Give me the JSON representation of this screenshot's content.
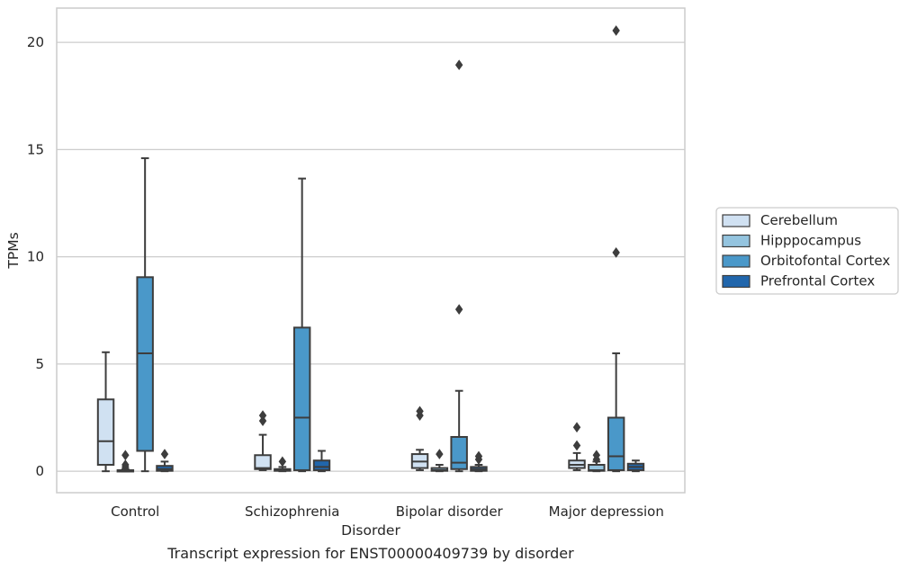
{
  "caption": "Transcript expression for ENST00000409739 by disorder",
  "chart_data": {
    "type": "box",
    "xlabel": "Disorder",
    "ylabel": "TPMs",
    "ylim": [
      -1,
      21.6
    ],
    "yticks": [
      0,
      5,
      10,
      15,
      20
    ],
    "grid": "horizontal",
    "legend_position": "right",
    "categories": [
      "Control",
      "Schizophrenia",
      "Bipolar disorder",
      "Major depression"
    ],
    "series": [
      {
        "name": "Cerebellum",
        "color": "#d0e1f2",
        "boxes": [
          {
            "category": "Control",
            "whisker_low": 0,
            "q1": 0.3,
            "median": 1.4,
            "q3": 3.35,
            "whisker_high": 5.55,
            "outliers": []
          },
          {
            "category": "Schizophrenia",
            "whisker_low": 0.05,
            "q1": 0.1,
            "median": 0.15,
            "q3": 0.75,
            "whisker_high": 1.7,
            "outliers": [
              2.35,
              2.6
            ]
          },
          {
            "category": "Bipolar disorder",
            "whisker_low": 0.05,
            "q1": 0.15,
            "median": 0.45,
            "q3": 0.8,
            "whisker_high": 1.0,
            "outliers": [
              2.6,
              2.8
            ]
          },
          {
            "category": "Major depression",
            "whisker_low": 0.05,
            "q1": 0.15,
            "median": 0.3,
            "q3": 0.5,
            "whisker_high": 0.85,
            "outliers": [
              1.2,
              2.05
            ]
          }
        ]
      },
      {
        "name": "Hipppocampus",
        "color": "#94c4df",
        "boxes": [
          {
            "category": "Control",
            "whisker_low": 0,
            "q1": 0,
            "median": 0.02,
            "q3": 0.05,
            "whisker_high": 0.1,
            "outliers": [
              0.2,
              0.3,
              0.75
            ]
          },
          {
            "category": "Schizophrenia",
            "whisker_low": 0,
            "q1": 0.02,
            "median": 0.05,
            "q3": 0.1,
            "whisker_high": 0.2,
            "outliers": [
              0.45
            ]
          },
          {
            "category": "Bipolar disorder",
            "whisker_low": 0,
            "q1": 0.02,
            "median": 0.05,
            "q3": 0.15,
            "whisker_high": 0.3,
            "outliers": [
              0.8
            ]
          },
          {
            "category": "Major depression",
            "whisker_low": 0,
            "q1": 0.02,
            "median": 0.05,
            "q3": 0.3,
            "whisker_high": 0.45,
            "outliers": [
              0.55,
              0.75
            ]
          }
        ]
      },
      {
        "name": "Orbitofontal Cortex",
        "color": "#4a98c9",
        "boxes": [
          {
            "category": "Control",
            "whisker_low": 0,
            "q1": 0.95,
            "median": 5.5,
            "q3": 9.05,
            "whisker_high": 14.6,
            "outliers": []
          },
          {
            "category": "Schizophrenia",
            "whisker_low": 0,
            "q1": 0.05,
            "median": 2.5,
            "q3": 6.7,
            "whisker_high": 13.65,
            "outliers": []
          },
          {
            "category": "Bipolar disorder",
            "whisker_low": 0,
            "q1": 0.1,
            "median": 0.4,
            "q3": 1.6,
            "whisker_high": 3.75,
            "outliers": [
              7.55,
              18.95
            ]
          },
          {
            "category": "Major depression",
            "whisker_low": 0,
            "q1": 0.05,
            "median": 0.7,
            "q3": 2.5,
            "whisker_high": 5.5,
            "outliers": [
              10.2,
              20.55
            ]
          }
        ]
      },
      {
        "name": "Prefrontal Cortex",
        "color": "#2166ac",
        "boxes": [
          {
            "category": "Control",
            "whisker_low": 0,
            "q1": 0.02,
            "median": 0.1,
            "q3": 0.25,
            "whisker_high": 0.45,
            "outliers": [
              0.8
            ]
          },
          {
            "category": "Schizophrenia",
            "whisker_low": 0,
            "q1": 0.05,
            "median": 0.2,
            "q3": 0.5,
            "whisker_high": 0.95,
            "outliers": []
          },
          {
            "category": "Bipolar disorder",
            "whisker_low": 0,
            "q1": 0.02,
            "median": 0.1,
            "q3": 0.2,
            "whisker_high": 0.3,
            "outliers": [
              0.55,
              0.7
            ]
          },
          {
            "category": "Major depression",
            "whisker_low": 0,
            "q1": 0.05,
            "median": 0.2,
            "q3": 0.35,
            "whisker_high": 0.5,
            "outliers": []
          }
        ]
      }
    ]
  }
}
